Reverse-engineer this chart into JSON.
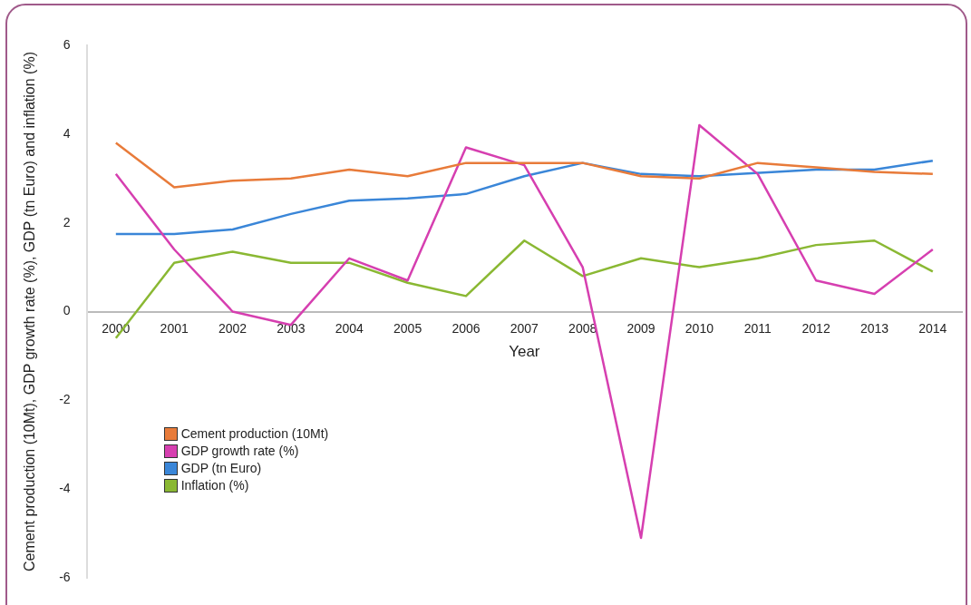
{
  "chart_data": {
    "type": "line",
    "xlabel": "Year",
    "ylabel": "Cement production (10Mt), GDP growth rate (%), GDP (tn Euro) and inflation (%)",
    "categories": [
      "2000",
      "2001",
      "2002",
      "2003",
      "2004",
      "2005",
      "2006",
      "2007",
      "2008",
      "2009",
      "2010",
      "2011",
      "2012",
      "2013",
      "2014"
    ],
    "series": [
      {
        "name": "Cement production (10Mt)",
        "color": "#e87b3a",
        "values": [
          3.8,
          2.8,
          2.95,
          3.0,
          3.2,
          3.05,
          3.35,
          3.35,
          3.35,
          3.05,
          3.0,
          3.35,
          3.25,
          3.15,
          3.1
        ]
      },
      {
        "name": "GDP growth rate (%)",
        "color": "#d63fb0",
        "values": [
          3.1,
          1.4,
          0.0,
          -0.3,
          1.2,
          0.7,
          3.7,
          3.3,
          1.0,
          -5.1,
          4.2,
          3.1,
          0.7,
          0.4,
          1.4
        ]
      },
      {
        "name": "GDP (tn Euro)",
        "color": "#3a86d8",
        "values": [
          1.75,
          1.75,
          1.85,
          2.2,
          2.5,
          2.55,
          2.65,
          3.05,
          3.35,
          3.1,
          3.05,
          null,
          3.2,
          3.2,
          3.4
        ]
      },
      {
        "name": "Inflation (%)",
        "color": "#8ab833",
        "values": [
          -0.6,
          1.1,
          1.35,
          1.1,
          1.1,
          0.65,
          0.35,
          1.6,
          0.8,
          1.2,
          1.0,
          1.2,
          1.5,
          1.6,
          0.9
        ]
      }
    ],
    "ylim": [
      -6,
      6
    ],
    "yticks": [
      -6,
      -4,
      -2,
      0,
      2,
      4,
      6
    ],
    "grid": false,
    "legend": "bottom left",
    "marker": "none",
    "line_style": "solid"
  }
}
